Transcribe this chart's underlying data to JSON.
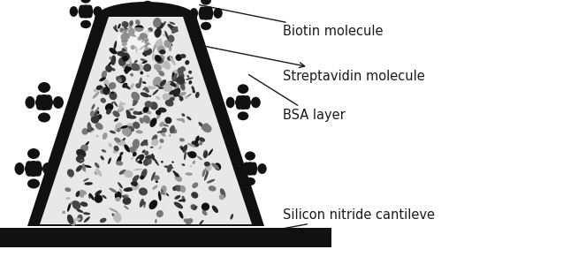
{
  "fig_width": 6.37,
  "fig_height": 2.91,
  "dpi": 100,
  "bg_color": "#ffffff",
  "labels": {
    "biotin": "Biotin molecule",
    "streptavidin": "Streptavidin molecule",
    "bsa": "BSA layer",
    "silicon": "Silicon nitride cantileve"
  },
  "label_fontsize": 10.5,
  "label_color": "#1a1a1a",
  "annotation_color": "#1a1a1a"
}
